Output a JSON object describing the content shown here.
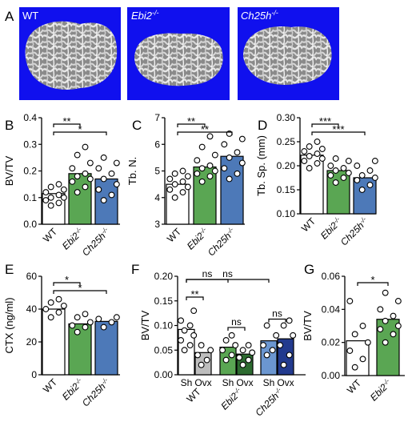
{
  "panel_labels": [
    "A",
    "B",
    "C",
    "D",
    "E",
    "F",
    "G"
  ],
  "micro_ct": [
    {
      "label": "WT",
      "italic": false
    },
    {
      "label": "Ebi2",
      "sup": "-/-",
      "italic": true
    },
    {
      "label": "Ch25h",
      "sup": "-/-",
      "italic": true
    }
  ],
  "colors": {
    "wt": "#ffffff",
    "ebi2": "#5aa653",
    "ch25h": "#4d79b8",
    "sham_wt": "#ffffff",
    "ovx_wt": "#bdbdbd",
    "sham_ebi2": "#5aa653",
    "ovx_ebi2": "#2d6b30",
    "sham_ch25h": "#6b96d0",
    "ovx_ch25h": "#223a8e",
    "blue_bg": "#1010ee"
  },
  "chart_data": [
    {
      "panel": "B",
      "type": "bar",
      "ylabel": "BV/TV",
      "ylim": [
        0,
        0.4
      ],
      "yticks": [
        "0.0",
        "0.1",
        "0.2",
        "0.3",
        "0.4"
      ],
      "categories": [
        {
          "name": "WT"
        },
        {
          "name": "Ebi2",
          "sup": "-/-"
        },
        {
          "name": "Ch25h",
          "sup": "-/-"
        }
      ],
      "values": [
        0.115,
        0.19,
        0.17
      ],
      "points": [
        [
          0.07,
          0.08,
          0.09,
          0.1,
          0.1,
          0.11,
          0.12,
          0.13,
          0.14,
          0.15
        ],
        [
          0.12,
          0.14,
          0.16,
          0.17,
          0.18,
          0.19,
          0.21,
          0.23,
          0.26,
          0.29
        ],
        [
          0.09,
          0.11,
          0.13,
          0.15,
          0.17,
          0.19,
          0.21,
          0.23,
          0.25
        ]
      ],
      "significance": [
        {
          "from": 0,
          "to": 1,
          "label": "**"
        },
        {
          "from": 0,
          "to": 2,
          "label": "*"
        }
      ]
    },
    {
      "panel": "C",
      "type": "bar",
      "ylabel": "Tb. N.",
      "ylim": [
        3,
        7
      ],
      "yticks": [
        "3",
        "4",
        "5",
        "6",
        "7"
      ],
      "categories": [
        {
          "name": "WT"
        },
        {
          "name": "Ebi2",
          "sup": "-/-"
        },
        {
          "name": "Ch25h",
          "sup": "-/-"
        }
      ],
      "values": [
        4.5,
        5.15,
        5.55
      ],
      "points": [
        [
          4.0,
          4.2,
          4.3,
          4.4,
          4.5,
          4.6,
          4.7,
          4.8,
          4.9,
          5.0
        ],
        [
          4.6,
          4.8,
          4.9,
          5.0,
          5.1,
          5.2,
          5.4,
          5.6,
          5.9,
          6.3
        ],
        [
          4.7,
          4.9,
          5.1,
          5.3,
          5.5,
          5.7,
          6.0,
          6.2,
          6.4
        ]
      ],
      "significance": [
        {
          "from": 0,
          "to": 1,
          "label": "**"
        },
        {
          "from": 0,
          "to": 2,
          "label": "**"
        }
      ]
    },
    {
      "panel": "D",
      "type": "bar",
      "ylabel": "Tb. Sp. (mm)",
      "ylim": [
        0.1,
        0.3
      ],
      "yticks": [
        "0.10",
        "0.15",
        "0.20",
        "0.25",
        "0.30"
      ],
      "categories": [
        {
          "name": "WT"
        },
        {
          "name": "Ebi2",
          "sup": "-/-"
        },
        {
          "name": "Ch25h",
          "sup": "-/-"
        }
      ],
      "values": [
        0.222,
        0.19,
        0.175
      ],
      "points": [
        [
          0.195,
          0.205,
          0.21,
          0.215,
          0.22,
          0.225,
          0.23,
          0.235,
          0.24,
          0.25
        ],
        [
          0.165,
          0.175,
          0.18,
          0.185,
          0.19,
          0.195,
          0.2,
          0.21,
          0.215
        ],
        [
          0.15,
          0.16,
          0.17,
          0.175,
          0.18,
          0.19,
          0.2,
          0.21
        ]
      ],
      "significance": [
        {
          "from": 0,
          "to": 1,
          "label": "***"
        },
        {
          "from": 0,
          "to": 2,
          "label": "***"
        }
      ]
    },
    {
      "panel": "E",
      "type": "bar",
      "ylabel": "CTX (ng/ml)",
      "ylim": [
        0,
        60
      ],
      "yticks": [
        "0",
        "20",
        "40",
        "60"
      ],
      "categories": [
        {
          "name": "WT"
        },
        {
          "name": "Ebi2",
          "sup": "-/-"
        },
        {
          "name": "Ch25h",
          "sup": "-/-"
        }
      ],
      "values": [
        40,
        31,
        32.5
      ],
      "points": [
        [
          35,
          38,
          40,
          42,
          44,
          46
        ],
        [
          26,
          29,
          30,
          32,
          35,
          37
        ],
        [
          29,
          32,
          34,
          35
        ]
      ],
      "significance": [
        {
          "from": 0,
          "to": 1,
          "label": "*"
        },
        {
          "from": 0,
          "to": 2,
          "label": "*"
        }
      ]
    },
    {
      "panel": "F",
      "type": "bar",
      "ylabel": "BV/TV",
      "ylim": [
        0,
        0.2
      ],
      "yticks": [
        "0.00",
        "0.05",
        "0.10",
        "0.15",
        "0.20"
      ],
      "groups": [
        {
          "name": "WT"
        },
        {
          "name": "Ebi2",
          "sup": "-/-"
        },
        {
          "name": "Ch25h",
          "sup": "-/-"
        }
      ],
      "subcategories": [
        "Sh",
        "Ovx"
      ],
      "values": [
        [
          0.092,
          0.045
        ],
        [
          0.056,
          0.042
        ],
        [
          0.069,
          0.073
        ]
      ],
      "points": [
        [
          [
            0.05,
            0.06,
            0.07,
            0.08,
            0.09,
            0.1,
            0.11,
            0.13
          ],
          [
            0.02,
            0.03,
            0.04,
            0.05,
            0.06
          ]
        ],
        [
          [
            0.03,
            0.04,
            0.05,
            0.06,
            0.07,
            0.08
          ],
          [
            0.02,
            0.03,
            0.035,
            0.045,
            0.05,
            0.06
          ]
        ],
        [
          [
            0.04,
            0.05,
            0.06,
            0.08,
            0.1
          ],
          [
            0.02,
            0.04,
            0.06,
            0.08,
            0.1,
            0.11
          ]
        ]
      ],
      "significance": [
        {
          "label": "**",
          "from": [
            0,
            0
          ],
          "to": [
            0,
            1
          ]
        },
        {
          "label": "ns",
          "from": [
            0,
            0
          ],
          "to": [
            1,
            0
          ]
        },
        {
          "label": "ns",
          "from": [
            0,
            0
          ],
          "to": [
            2,
            0
          ]
        },
        {
          "label": "ns",
          "from": [
            1,
            0
          ],
          "to": [
            1,
            1
          ]
        },
        {
          "label": "ns",
          "from": [
            2,
            0
          ],
          "to": [
            2,
            1
          ]
        }
      ]
    },
    {
      "panel": "G",
      "type": "bar",
      "ylabel": "BV/TV",
      "ylim": [
        0,
        0.06
      ],
      "yticks": [
        "0.00",
        "0.02",
        "0.04",
        "0.06"
      ],
      "categories": [
        {
          "name": "WT"
        },
        {
          "name": "Ebi2",
          "sup": "-/-"
        }
      ],
      "values": [
        0.021,
        0.034
      ],
      "points": [
        [
          0.005,
          0.01,
          0.015,
          0.02,
          0.025,
          0.03,
          0.045
        ],
        [
          0.02,
          0.025,
          0.028,
          0.03,
          0.033,
          0.036,
          0.04,
          0.045,
          0.05
        ]
      ],
      "significance": [
        {
          "from": 0,
          "to": 1,
          "label": "*"
        }
      ]
    }
  ]
}
